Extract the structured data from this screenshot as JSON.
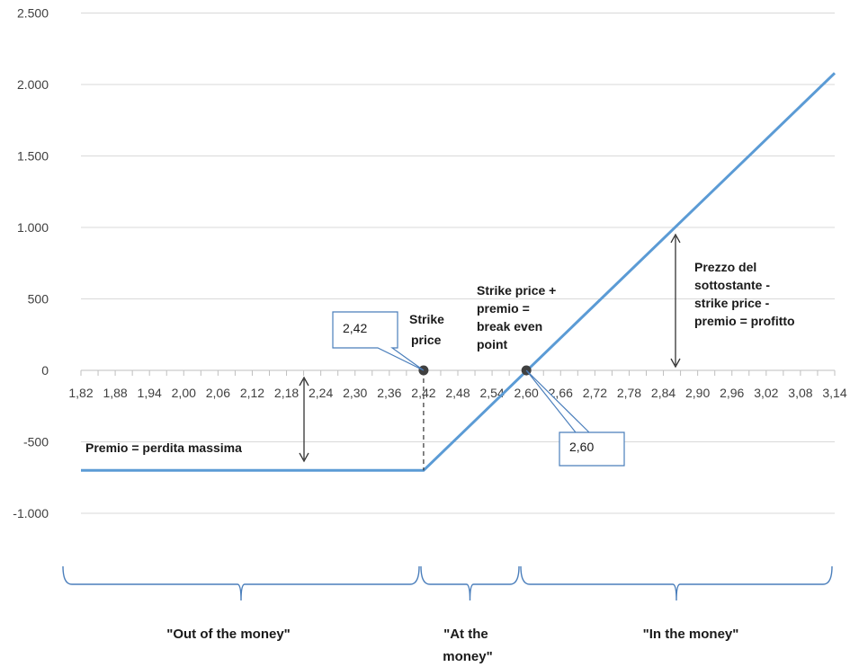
{
  "chart_data": {
    "type": "line",
    "title": "",
    "xlabel": "",
    "ylabel": "",
    "categories": [
      "1,82",
      "1,88",
      "1,94",
      "2,00",
      "2,06",
      "2,12",
      "2,18",
      "2,24",
      "2,30",
      "2,36",
      "2,42",
      "2,48",
      "2,54",
      "2,60",
      "2,66",
      "2,72",
      "2,78",
      "2,84",
      "2,90",
      "2,96",
      "3,02",
      "3,08",
      "3,14"
    ],
    "x": [
      1.82,
      2.42,
      3.14
    ],
    "y": [
      -700,
      -700,
      2080
    ],
    "series": [
      {
        "values_x": [
          1.82,
          2.42,
          3.14
        ],
        "values_y": [
          -700,
          -700,
          2080
        ],
        "color": "#5b9bd5"
      }
    ],
    "ylim": [
      -1250,
      2500
    ],
    "y_ticks": [
      {
        "value": 2500,
        "label": "2.500"
      },
      {
        "value": 2000,
        "label": "2.000"
      },
      {
        "value": 1500,
        "label": "1.500"
      },
      {
        "value": 1000,
        "label": "1.000"
      },
      {
        "value": 500,
        "label": "500"
      },
      {
        "value": 0,
        "label": "0"
      },
      {
        "value": -500,
        "label": "-500"
      },
      {
        "value": -1000,
        "label": "-1.000"
      }
    ],
    "grid": true,
    "legend": "none",
    "points": [
      {
        "x": 2.42,
        "y": 0
      },
      {
        "x": 2.6,
        "y": 0
      }
    ],
    "annotations": {
      "strike": [
        "Strike",
        "price"
      ],
      "breakeven": [
        "Strike price +",
        "premio =",
        "break even",
        "point"
      ],
      "profit": [
        "Prezzo del",
        "sottostante -",
        "strike price -",
        "premio = profitto"
      ],
      "premium": "Premio = perdita massima",
      "box_strike": "2,42",
      "box_breakeven": "2,60"
    },
    "zones": {
      "out": [
        "\"Out of the money\""
      ],
      "at": [
        "\"At the",
        "money\""
      ],
      "in": [
        "\"In the money\""
      ]
    }
  },
  "colors": {
    "line": "#5b9bd5",
    "grid": "#d9d9d9",
    "axis": "#bfbfbf",
    "brace": "#4a7ebb",
    "point": "#404040",
    "box_border": "#4a7ebb"
  }
}
